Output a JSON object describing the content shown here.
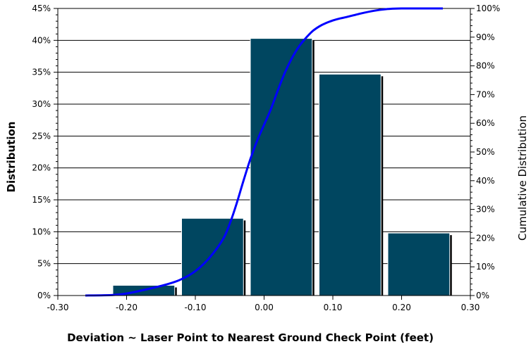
{
  "chart_data": {
    "type": "bar",
    "xlabel": "Deviation ~ Laser Point to Nearest Ground Check Point (feet)",
    "ylabel": "Distribution",
    "y2label": "Cumulative Distribution",
    "x_ticks": [
      "-0.30",
      "-0.20",
      "-0.10",
      "0.00",
      "0.10",
      "0.20",
      "0.30"
    ],
    "x_tick_values": [
      -0.3,
      -0.2,
      -0.1,
      0.0,
      0.1,
      0.2,
      0.3
    ],
    "y_ticks": [
      "0%",
      "5%",
      "10%",
      "15%",
      "20%",
      "25%",
      "30%",
      "35%",
      "40%",
      "45%"
    ],
    "y2_ticks": [
      "0%",
      "10%",
      "20%",
      "30%",
      "40%",
      "50%",
      "60%",
      "70%",
      "80%",
      "90%",
      "100%"
    ],
    "xlim": [
      -0.3,
      0.3
    ],
    "ylim": [
      0,
      45
    ],
    "y2lim": [
      0,
      100
    ],
    "grid": "horizontal",
    "bar_color": "#004660",
    "line_color": "#0000ff",
    "bars": [
      {
        "x": -0.175,
        "value": 1.6
      },
      {
        "x": -0.075,
        "value": 12.1
      },
      {
        "x": 0.025,
        "value": 40.3
      },
      {
        "x": 0.125,
        "value": 34.7
      },
      {
        "x": 0.225,
        "value": 9.8
      }
    ],
    "bar_width": 0.09,
    "cumulative": {
      "x": [
        -0.26,
        -0.22,
        -0.2,
        -0.17,
        -0.14,
        -0.12,
        -0.1,
        -0.08,
        -0.06,
        -0.05,
        -0.04,
        -0.03,
        -0.02,
        -0.01,
        0.0,
        0.01,
        0.02,
        0.03,
        0.04,
        0.05,
        0.06,
        0.07,
        0.08,
        0.09,
        0.1,
        0.11,
        0.12,
        0.14,
        0.16,
        0.18,
        0.2,
        0.26
      ],
      "y": [
        0,
        0.2,
        0.7,
        2.2,
        4,
        5.7,
        8.5,
        13,
        19.5,
        25,
        32,
        40,
        47.5,
        54,
        59.5,
        65,
        71.5,
        77.5,
        82.5,
        86.5,
        89.5,
        92,
        93.7,
        94.9,
        95.8,
        96.5,
        97,
        98.2,
        99.2,
        99.8,
        100,
        100
      ]
    }
  }
}
